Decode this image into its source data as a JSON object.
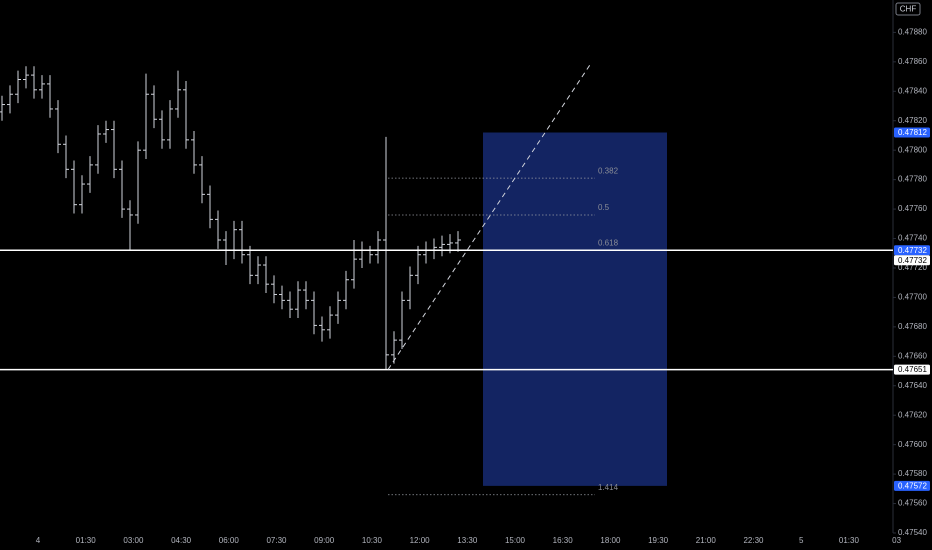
{
  "chart_data": {
    "type": "ohlc",
    "currency": "CHF",
    "ylim": [
      0.4754,
      0.47902
    ],
    "yticks": [
      {
        "value": 0.4788,
        "label": "0.47880"
      },
      {
        "value": 0.4786,
        "label": "0.47860"
      },
      {
        "value": 0.4784,
        "label": "0.47840"
      },
      {
        "value": 0.4782,
        "label": "0.47820"
      },
      {
        "value": 0.478,
        "label": "0.47800"
      },
      {
        "value": 0.4778,
        "label": "0.47780"
      },
      {
        "value": 0.4776,
        "label": "0.47760"
      },
      {
        "value": 0.4774,
        "label": "0.47740"
      },
      {
        "value": 0.4772,
        "label": "0.47720"
      },
      {
        "value": 0.477,
        "label": "0.47700"
      },
      {
        "value": 0.4768,
        "label": "0.47680"
      },
      {
        "value": 0.4766,
        "label": "0.47660"
      },
      {
        "value": 0.4764,
        "label": "0.47640"
      },
      {
        "value": 0.4762,
        "label": "0.47620"
      },
      {
        "value": 0.476,
        "label": "0.47600"
      },
      {
        "value": 0.4758,
        "label": "0.47580"
      },
      {
        "value": 0.4756,
        "label": "0.47560"
      },
      {
        "value": 0.4754,
        "label": "0.47540"
      }
    ],
    "x_labels": [
      "4",
      "01:30",
      "03:00",
      "04:30",
      "06:00",
      "07:30",
      "09:00",
      "10:30",
      "12:00",
      "13:30",
      "15:00",
      "16:30",
      "18:00",
      "19:30",
      "21:00",
      "22:30",
      "5",
      "01:30",
      "03"
    ],
    "open": [
      0.47826,
      0.47831,
      0.47838,
      0.47848,
      0.47851,
      0.47841,
      0.47845,
      0.47828,
      0.47804,
      0.47787,
      0.47763,
      0.47777,
      0.4779,
      0.47811,
      0.47814,
      0.47787,
      0.4776,
      0.47756,
      0.478,
      0.47838,
      0.47821,
      0.47807,
      0.47828,
      0.47841,
      0.47807,
      0.4779,
      0.4777,
      0.47753,
      0.47739,
      0.47732,
      0.47746,
      0.47729,
      0.47715,
      0.47722,
      0.47709,
      0.47702,
      0.47698,
      0.47692,
      0.47705,
      0.47698,
      0.47681,
      0.47678,
      0.47688,
      0.47698,
      0.47712,
      0.47726,
      0.47732,
      0.47729,
      0.47739,
      0.47661,
      0.47671,
      0.47698,
      0.47715,
      0.47729,
      0.47732,
      0.47734,
      0.47736,
      0.47737
    ],
    "high": [
      0.47837,
      0.47844,
      0.47854,
      0.47857,
      0.47857,
      0.47851,
      0.47851,
      0.47834,
      0.4781,
      0.47793,
      0.47783,
      0.47796,
      0.47817,
      0.4782,
      0.4782,
      0.47793,
      0.47766,
      0.47806,
      0.47852,
      0.47844,
      0.47827,
      0.47834,
      0.47854,
      0.47847,
      0.47813,
      0.47796,
      0.47776,
      0.47759,
      0.47745,
      0.47752,
      0.47752,
      0.47735,
      0.47728,
      0.47728,
      0.47715,
      0.47708,
      0.47704,
      0.47711,
      0.47711,
      0.47704,
      0.47687,
      0.47694,
      0.47704,
      0.47718,
      0.47739,
      0.47738,
      0.47735,
      0.47745,
      0.47809,
      0.47677,
      0.47704,
      0.47721,
      0.47735,
      0.47738,
      0.4774,
      0.47742,
      0.47743,
      0.47745
    ],
    "low": [
      0.4782,
      0.47825,
      0.47832,
      0.47842,
      0.47835,
      0.47835,
      0.47822,
      0.47798,
      0.47781,
      0.47757,
      0.47757,
      0.47771,
      0.47784,
      0.47805,
      0.47781,
      0.47754,
      0.47732,
      0.4775,
      0.47794,
      0.47815,
      0.47801,
      0.47801,
      0.47822,
      0.47801,
      0.47784,
      0.47764,
      0.47747,
      0.47733,
      0.47722,
      0.47726,
      0.47723,
      0.47709,
      0.47709,
      0.47703,
      0.47696,
      0.47692,
      0.47686,
      0.47686,
      0.47692,
      0.47675,
      0.4767,
      0.47672,
      0.47682,
      0.47692,
      0.47706,
      0.4772,
      0.47723,
      0.47723,
      0.47651,
      0.47655,
      0.47665,
      0.47692,
      0.47709,
      0.47723,
      0.47726,
      0.47728,
      0.4773,
      0.47731
    ],
    "close": [
      0.47831,
      0.47838,
      0.47848,
      0.47851,
      0.47841,
      0.47845,
      0.47828,
      0.47804,
      0.47787,
      0.47763,
      0.47777,
      0.4779,
      0.47811,
      0.47814,
      0.47787,
      0.4776,
      0.47756,
      0.478,
      0.47838,
      0.47821,
      0.47807,
      0.47828,
      0.47841,
      0.47807,
      0.4779,
      0.4777,
      0.47753,
      0.47739,
      0.47732,
      0.47746,
      0.47729,
      0.47715,
      0.47722,
      0.47709,
      0.47702,
      0.47698,
      0.47692,
      0.47705,
      0.47698,
      0.47681,
      0.47678,
      0.47688,
      0.47698,
      0.47712,
      0.47726,
      0.47732,
      0.47729,
      0.47739,
      0.47661,
      0.47671,
      0.47698,
      0.47715,
      0.47729,
      0.47732,
      0.47734,
      0.47736,
      0.47737,
      0.47739
    ],
    "hlines": [
      0.47732,
      0.47651
    ],
    "trendline": [
      0.47651,
      0.47858
    ],
    "box": {
      "top": 0.47812,
      "bottom": 0.47572
    },
    "fib_levels": [
      {
        "label": "0.382",
        "price": 0.47781
      },
      {
        "label": "0.5",
        "price": 0.47756
      },
      {
        "label": "0.618",
        "price": 0.47732
      },
      {
        "label": "1.414",
        "price": 0.47566
      }
    ],
    "price_labels": [
      {
        "value": 0.47812,
        "label": "0.47812",
        "color": "#2962ff"
      },
      {
        "value": 0.47732,
        "label": "0.47732",
        "color": "#2962ff"
      },
      {
        "value": 0.47732,
        "label": "0.47732",
        "color": "#ffffff"
      },
      {
        "value": 0.47651,
        "label": "0.47651",
        "color": "#ffffff"
      },
      {
        "value": 0.47572,
        "label": "0.47572",
        "color": "#2962ff"
      }
    ]
  }
}
